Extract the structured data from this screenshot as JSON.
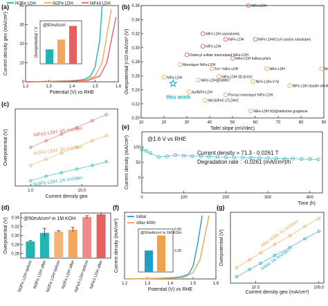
{
  "figure": {
    "panels": [
      "(a)",
      "(b)",
      "(c)",
      "(d)",
      "(e)",
      "(f)",
      "(g)"
    ]
  },
  "colors": {
    "ni3fe": "#1fb5b5",
    "ni2fe": "#f4a65a",
    "nife": "#e36161",
    "initial": "#1f9fc7",
    "after": "#f3a04e",
    "thiswork": "#2bb3c0",
    "other": "#e36161"
  },
  "chart_data": [
    {
      "panel": "(a)",
      "type": "line",
      "legend": [
        "Ni3Fe LDH",
        "Ni2Fe LDH",
        "NiFe3 LDH"
      ],
      "xlabel": "Potential (V) vs RHE",
      "ylabel": "Current density geo (mA/cm²)",
      "xlim": [
        1.2,
        1.6
      ],
      "ylim": [
        0,
        40
      ],
      "xticks": [
        "1.2",
        "1.3",
        "1.4",
        "1.5",
        "1.6"
      ],
      "yticks": [
        "0",
        "10",
        "20",
        "30",
        "40"
      ],
      "series": [
        {
          "name": "Ni3Fe LDH",
          "x": [
            1.2,
            1.3,
            1.4,
            1.45,
            1.48,
            1.5,
            1.52,
            1.53
          ],
          "y": [
            0,
            0.2,
            0.6,
            1.2,
            3,
            8,
            22,
            40
          ]
        },
        {
          "name": "Ni2Fe LDH",
          "x": [
            1.2,
            1.3,
            1.4,
            1.46,
            1.5,
            1.53,
            1.55,
            1.57
          ],
          "y": [
            0,
            0.2,
            0.5,
            1.0,
            3,
            10,
            24,
            38
          ]
        },
        {
          "name": "NiFe3 LDH",
          "x": [
            1.2,
            1.3,
            1.4,
            1.47,
            1.52,
            1.55,
            1.57,
            1.59
          ],
          "y": [
            0,
            0.2,
            0.4,
            0.8,
            3,
            10,
            22,
            34
          ]
        }
      ],
      "inset": {
        "type": "bar",
        "annotation": "@50mA/cm²",
        "ylabel": "Overpotential / V",
        "categories": [
          "Ni3Fe LDH",
          "Ni2Fe LDH",
          "NiFe3 LDH"
        ],
        "values": [
          0.287,
          0.312,
          0.347
        ],
        "ylim": [
          0.25,
          0.36
        ]
      }
    },
    {
      "panel": "(b)",
      "type": "scatter",
      "xlabel": "Tafel slope (mV/dec)",
      "ylabel": "Overpotential j=10 mA/cm² (V)",
      "xlim": [
        10,
        90
      ],
      "ylim": [
        0.2,
        0.36
      ],
      "xticks": [
        "10",
        "20",
        "30",
        "40",
        "50",
        "60",
        "70",
        "80",
        "90"
      ],
      "yticks": [
        "0.20",
        "0.22",
        "0.24",
        "0.26",
        "0.28",
        "0.30",
        "0.32",
        "0.34",
        "0.36"
      ],
      "this_work_label": "this work",
      "points": [
        {
          "label": "NiFe-LDH",
          "x": 57,
          "y": 0.36
        },
        {
          "label": "NiFe LDH nanosheets",
          "x": 37,
          "y": 0.32
        },
        {
          "label": "NiFe-LDH",
          "x": 47,
          "y": 0.312
        },
        {
          "label": "NiFe LDH/Co,N carbon nanotubes",
          "x": 60,
          "y": 0.312
        },
        {
          "label": "NiFe-LDH",
          "x": 37,
          "y": 0.302
        },
        {
          "label": "Dodecyl sulfate intercalated NiFe-LDH",
          "x": 30,
          "y": 0.29
        },
        {
          "label": "NiFe-LDH hollow prism",
          "x": 50,
          "y": 0.285
        },
        {
          "label": "Monolayer NiFe-LDH",
          "x": 27,
          "y": 0.276
        },
        {
          "label": "Fe³⁺-NiFe-LDH",
          "x": 41,
          "y": 0.27
        },
        {
          "label": "NiFe-LDH",
          "x": 65,
          "y": 0.27
        },
        {
          "label": "NiFe LDH - NS",
          "x": 89,
          "y": 0.27
        },
        {
          "label": "NiFe-LDH 3D-ErGO",
          "x": 44,
          "y": 0.259
        },
        {
          "label": "NiFe-LDH",
          "x": 20,
          "y": 0.258
        },
        {
          "label": "NiFe-LDH@SWNT",
          "x": 35,
          "y": 0.254
        },
        {
          "label": "NiFe-LDH-V Ni",
          "x": 59,
          "y": 0.252
        },
        {
          "label": "NiFe-LDH double shelled nanocages",
          "x": 75,
          "y": 0.246
        },
        {
          "label": "Au/NiFe-LDH",
          "x": 31,
          "y": 0.237
        },
        {
          "label": "Porous monolayer NiFe-LDH",
          "x": 47,
          "y": 0.233
        },
        {
          "label": "Ni0.83Fe0.17LDH/C",
          "x": 38,
          "y": 0.225
        },
        {
          "label": "NiFe-LDH NS@defective graphene",
          "x": 58,
          "y": 0.21
        },
        {
          "label": "this work",
          "x": 24,
          "y": 0.249,
          "highlight": true
        }
      ]
    },
    {
      "panel": "(c)",
      "type": "scatter",
      "xlabel": "Current density geo",
      "ylabel": "Overpotential (V)",
      "xticks": [
        "1.0",
        "10.0"
      ],
      "xscale": "log",
      "series": [
        {
          "name": "Ni3Fe LDH: 24 mV/dec",
          "x": [
            1,
            2,
            4,
            8,
            16,
            30
          ],
          "y": [
            0.17,
            0.179,
            0.186,
            0.193,
            0.2,
            0.207
          ]
        },
        {
          "name": "Ni2Fe LDH: 39 mV/dec",
          "x": [
            1,
            2,
            4,
            8,
            16,
            30
          ],
          "y": [
            0.2,
            0.212,
            0.224,
            0.236,
            0.248,
            0.258
          ]
        },
        {
          "name": "NiFe3 LDH: 43 mV/dec",
          "x": [
            1,
            2,
            4,
            8,
            16,
            30
          ],
          "y": [
            0.235,
            0.248,
            0.261,
            0.274,
            0.287,
            0.299
          ]
        }
      ]
    },
    {
      "panel": "(d)",
      "type": "bar",
      "annotation": "@50mA/cm² in 1M KOH",
      "ylabel": "Overpotential (V)",
      "ylim": [
        0.25,
        0.35
      ],
      "yticks": [
        "0.26",
        "0.28",
        "0.30",
        "0.32",
        "0.34"
      ],
      "categories": [
        "Ni3Fe LDH before",
        "Ni3Fe LDH after",
        "Ni2Fe LDH before",
        "Ni2Fe LDH after",
        "NiFe3 LDH before",
        "NiFe3 LDH after"
      ],
      "values": [
        0.287,
        0.306,
        0.309,
        0.313,
        0.341,
        0.347
      ],
      "errors": [
        0.002,
        0.01,
        0.002,
        0.005,
        0.003,
        0.003
      ]
    },
    {
      "panel": "(e)",
      "type": "scatter",
      "annotation": "@1.6 V vs RHE",
      "fit_text": "Current density = 71.3 - 0.0261 T",
      "rate_text": "Degradation rate : -0.0261 (mA/cm²)/h",
      "xlabel": "Time (h)",
      "ylabel": "Current density (mA/cm²)",
      "xlim": [
        0,
        430
      ],
      "ylim": [
        -50,
        150
      ],
      "xticks": [
        "0",
        "100",
        "200",
        "300",
        "400"
      ],
      "yticks": [
        "0",
        "50",
        "100"
      ],
      "x": [
        0,
        10,
        20,
        40,
        60,
        80,
        100,
        120,
        140,
        160,
        180,
        200,
        220,
        240,
        260,
        280,
        300,
        320,
        340,
        360,
        380,
        400,
        420
      ],
      "y": [
        92,
        88,
        80,
        68,
        70,
        74,
        72,
        70,
        71,
        69,
        68,
        67,
        66,
        66,
        65,
        64,
        64,
        63,
        62,
        62,
        61,
        61,
        60
      ]
    },
    {
      "panel": "(f)",
      "type": "line",
      "legend": [
        "Initial",
        "After 400h"
      ],
      "xlabel": "Potential (V) vs RHE",
      "ylabel": "Current density (mA/cm²)",
      "xlim": [
        1.2,
        1.6
      ],
      "xticks": [
        "1.2",
        "1.3",
        "1.4",
        "1.5",
        "1.6"
      ],
      "series": [
        {
          "name": "Initial",
          "x": [
            1.2,
            1.3,
            1.4,
            1.45,
            1.48,
            1.5,
            1.52,
            1.54
          ],
          "y": [
            0,
            0.2,
            0.6,
            1.4,
            3,
            8,
            22,
            40
          ]
        },
        {
          "name": "After 400h",
          "x": [
            1.2,
            1.3,
            1.4,
            1.46,
            1.5,
            1.53,
            1.55,
            1.57
          ],
          "y": [
            0,
            0.2,
            0.5,
            1.0,
            4,
            12,
            26,
            40
          ]
        }
      ],
      "inset": {
        "type": "bar",
        "annotation": "@50mA/cm² in 1M KOH",
        "ylabel": "Overpotential / V",
        "categories": [
          "Initial",
          "After 400h"
        ],
        "values": [
          0.28,
          0.294
        ],
        "ylim": [
          0.26,
          0.3
        ],
        "yticks": [
          "0.28",
          "0.30"
        ]
      }
    },
    {
      "panel": "(g)",
      "type": "scatter",
      "xlabel": "Current density geo (mA/cm²)",
      "ylabel": "Overpotential (V)",
      "xscale": "log",
      "xticks": [
        "10.0",
        "100.0"
      ],
      "series": [
        {
          "name": "Initial: 56 mV/dec",
          "x": [
            5,
            8,
            12,
            20,
            35,
            60,
            100
          ],
          "y": [
            0.24,
            0.252,
            0.262,
            0.275,
            0.288,
            0.302,
            0.314
          ]
        },
        {
          "name": "After 400h: 61 mV/dec",
          "x": [
            5,
            8,
            12,
            20,
            35,
            60,
            100
          ],
          "y": [
            0.255,
            0.268,
            0.279,
            0.293,
            0.307,
            0.322,
            0.335
          ]
        }
      ]
    }
  ]
}
